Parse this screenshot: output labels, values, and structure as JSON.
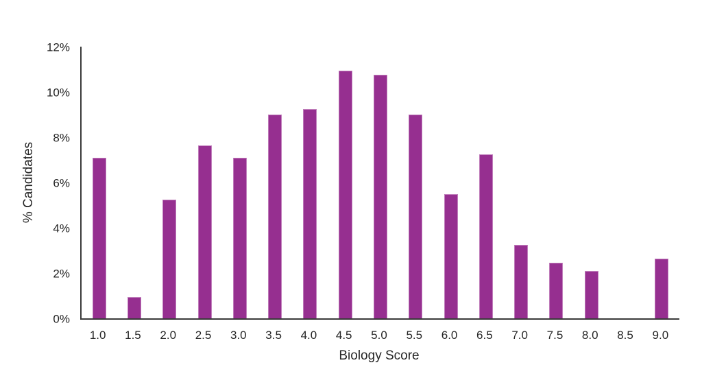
{
  "chart_data": {
    "type": "bar",
    "title": "",
    "xlabel": "Biology Score",
    "ylabel": "% Candidates",
    "categories": [
      "1.0",
      "1.5",
      "2.0",
      "2.5",
      "3.0",
      "3.5",
      "4.0",
      "4.5",
      "5.0",
      "5.5",
      "6.0",
      "6.5",
      "7.0",
      "7.5",
      "8.0",
      "8.5",
      "9.0"
    ],
    "values": [
      7.1,
      0.95,
      5.25,
      7.65,
      7.1,
      9.0,
      9.25,
      10.95,
      10.75,
      9.0,
      5.5,
      7.25,
      3.25,
      2.45,
      2.1,
      0,
      2.65
    ],
    "ylim": [
      0,
      12
    ],
    "ytick_step": 2,
    "ytick_labels": [
      "0%",
      "2%",
      "4%",
      "6%",
      "8%",
      "10%",
      "12%"
    ],
    "grid": false,
    "legend": null,
    "bar_color": "#962f90",
    "bar_border_color": "#c07ebb",
    "axis_color": "#3a3a3a",
    "text_color": "#262626"
  }
}
